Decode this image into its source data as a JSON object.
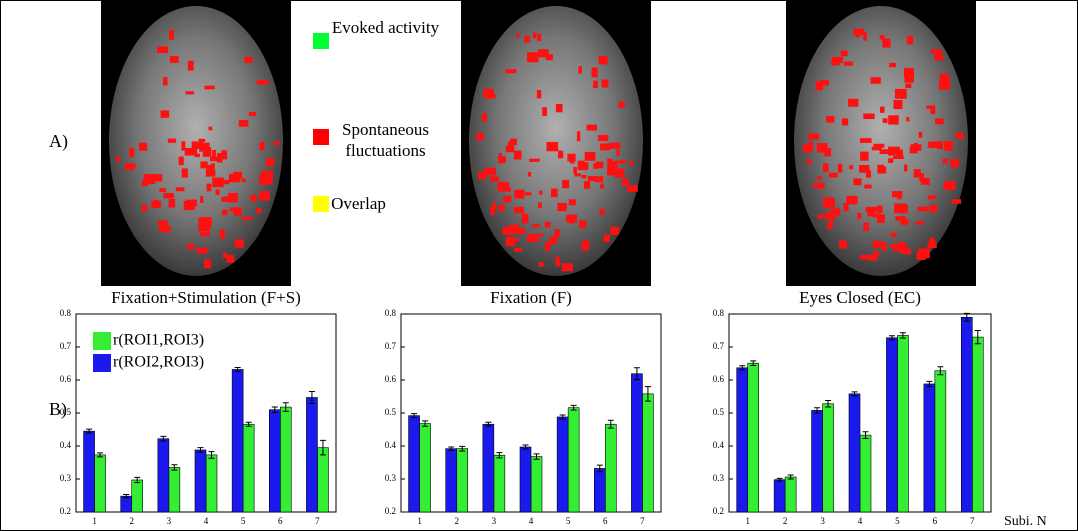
{
  "panel_labels": [
    "A)",
    "B)"
  ],
  "legend_a": [
    "Evoked activity",
    "Spontaneous fluctuations",
    "Overlap"
  ],
  "chart_data": [
    {
      "type": "bar",
      "title": "Fixation+Stimulation (F+S)",
      "categories": [
        "1",
        "2",
        "3",
        "4",
        "5",
        "6",
        "7"
      ],
      "ylim": [
        0.2,
        0.8
      ],
      "yticks": [
        0.2,
        0.3,
        0.4,
        0.5,
        0.6,
        0.7,
        0.8
      ],
      "legend": "upper left",
      "series": [
        {
          "name": "r(ROI1,ROI3)",
          "color": "#33ee33",
          "values": [
            0.373,
            0.297,
            0.335,
            0.373,
            0.466,
            0.518,
            0.395
          ],
          "errors": [
            0.006,
            0.008,
            0.008,
            0.01,
            0.006,
            0.013,
            0.022
          ]
        },
        {
          "name": "r(ROI2,ROI3)",
          "color": "#1a1aee",
          "values": [
            0.445,
            0.248,
            0.422,
            0.388,
            0.632,
            0.51,
            0.547
          ],
          "errors": [
            0.006,
            0.005,
            0.007,
            0.007,
            0.006,
            0.008,
            0.018
          ]
        }
      ]
    },
    {
      "type": "bar",
      "title": "Fixation (F)",
      "categories": [
        "1",
        "2",
        "3",
        "4",
        "5",
        "6",
        "7"
      ],
      "ylim": [
        0.2,
        0.8
      ],
      "yticks": [
        0.2,
        0.3,
        0.4,
        0.5,
        0.6,
        0.7,
        0.8
      ],
      "series": [
        {
          "name": "r(ROI1,ROI3)",
          "color": "#33ee33",
          "values": [
            0.468,
            0.392,
            0.372,
            0.368,
            0.516,
            0.466,
            0.558
          ],
          "errors": [
            0.008,
            0.007,
            0.008,
            0.008,
            0.007,
            0.012,
            0.022
          ]
        },
        {
          "name": "r(ROI2,ROI3)",
          "color": "#1a1aee",
          "values": [
            0.492,
            0.392,
            0.466,
            0.397,
            0.488,
            0.332,
            0.619
          ],
          "errors": [
            0.006,
            0.005,
            0.006,
            0.006,
            0.006,
            0.01,
            0.018
          ]
        }
      ]
    },
    {
      "type": "bar",
      "title": "Eyes Closed (EC)",
      "categories": [
        "1",
        "2",
        "3",
        "4",
        "5",
        "6",
        "7"
      ],
      "ylim": [
        0.2,
        0.8
      ],
      "yticks": [
        0.2,
        0.3,
        0.4,
        0.5,
        0.6,
        0.7,
        0.8
      ],
      "xlabel": "Subi. N",
      "series": [
        {
          "name": "r(ROI1,ROI3)",
          "color": "#33ee33",
          "values": [
            0.651,
            0.306,
            0.528,
            0.433,
            0.735,
            0.628,
            0.73
          ],
          "errors": [
            0.007,
            0.006,
            0.01,
            0.01,
            0.008,
            0.012,
            0.02
          ]
        },
        {
          "name": "r(ROI2,ROI3)",
          "color": "#1a1aee",
          "values": [
            0.637,
            0.298,
            0.508,
            0.558,
            0.728,
            0.588,
            0.79
          ],
          "errors": [
            0.006,
            0.004,
            0.008,
            0.006,
            0.006,
            0.008,
            0.012
          ]
        }
      ]
    }
  ]
}
